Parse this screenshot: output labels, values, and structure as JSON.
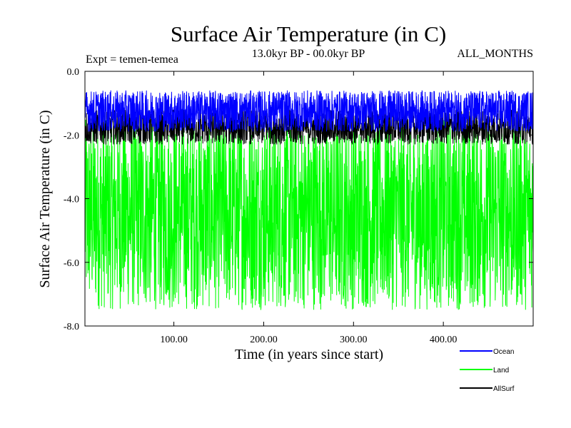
{
  "chart_data": {
    "type": "line",
    "title": "Surface Air Temperature (in C)",
    "subtitle": "13.0kyr BP - 00.0kyr BP",
    "experiment": "Expt = temen-temea",
    "months": "ALL_MONTHS",
    "xlabel": "Time (in years since start)",
    "ylabel": "Surface Air Temperature (in C)",
    "xlim": [
      1,
      500
    ],
    "ylim": [
      -8.0,
      0.0
    ],
    "xticks": [
      100,
      200,
      300,
      400
    ],
    "xtick_labels": [
      "100.00",
      "200.00",
      "300.00",
      "400.00"
    ],
    "yticks": [
      0.0,
      -2.0,
      -4.0,
      -6.0,
      -8.0
    ],
    "ytick_labels": [
      "0.0",
      "-2.0",
      "-4.0",
      "-6.0",
      "-8.0"
    ],
    "series": [
      {
        "name": "Land",
        "color": "#00ff00",
        "typical_range": [
          -7.5,
          -1.5
        ],
        "approx_mean": -4.5
      },
      {
        "name": "AllSurf",
        "color": "#000000",
        "typical_range": [
          -2.3,
          -1.2
        ],
        "approx_mean": -1.6
      },
      {
        "name": "Ocean",
        "color": "#0000ff",
        "typical_range": [
          -1.9,
          -0.6
        ],
        "approx_mean": -1.2
      }
    ],
    "legend": [
      {
        "label": "Ocean",
        "color": "#0000ff"
      },
      {
        "label": "Land",
        "color": "#00ff00"
      },
      {
        "label": "AllSurf",
        "color": "#000000"
      }
    ]
  }
}
